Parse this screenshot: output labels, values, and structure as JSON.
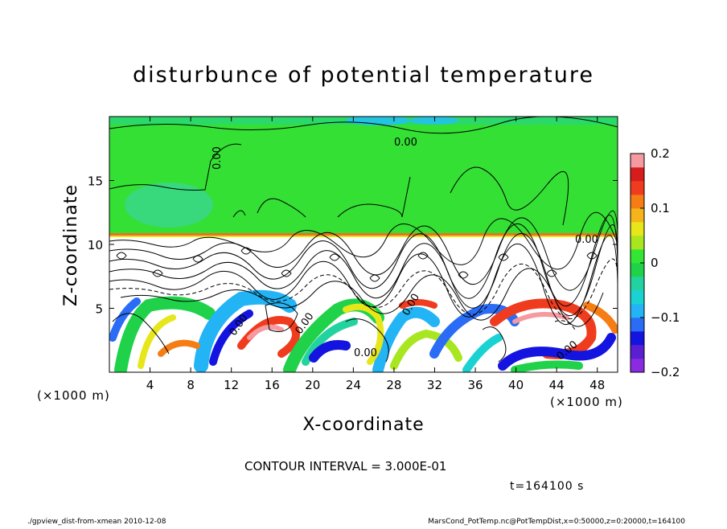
{
  "chart_data": {
    "type": "heatmap",
    "title": "disturbunce of potential temperature",
    "xlabel": "X-coordinate",
    "ylabel": "Z-coordinate",
    "x_unit_left": "(×1000 m)",
    "x_unit_right": "(×1000 m)",
    "xlim": [
      0,
      50
    ],
    "ylim": [
      0,
      20
    ],
    "x_ticks": [
      4,
      8,
      12,
      16,
      20,
      24,
      28,
      32,
      36,
      40,
      44,
      48
    ],
    "y_ticks": [
      5,
      10,
      15
    ],
    "colorbar": {
      "range": [
        -0.2,
        0.2
      ],
      "tick_labels": [
        "0.2",
        "0.1",
        "0",
        "−0.1",
        "−0.2"
      ],
      "tick_values": [
        0.2,
        0.1,
        0,
        -0.1,
        -0.2
      ],
      "colors": [
        "#8a2be2",
        "#5a1fd0",
        "#1414e0",
        "#2a6cf5",
        "#22b4f5",
        "#1ad2d2",
        "#22d3a0",
        "#1fd24a",
        "#33e633",
        "#a8e61f",
        "#e6e61a",
        "#f5b419",
        "#f57d14",
        "#f03c1e",
        "#d71c1c",
        "#f59aa0"
      ]
    },
    "contour_labels": [
      "0.00",
      "0.00",
      "0.00",
      "0.00",
      "0.00",
      "0.00",
      "0.00",
      "0.00"
    ],
    "annotation_interval": "CONTOUR INTERVAL = 3.000E-01",
    "annotation_time": "t=164100 s",
    "footer_left": "./gpview_dist-from-xmean  2010-12-08",
    "footer_right": "MarsCond_PotTemp.nc@PotTempDist,x=0:50000,z=0:20000,t=164100"
  }
}
